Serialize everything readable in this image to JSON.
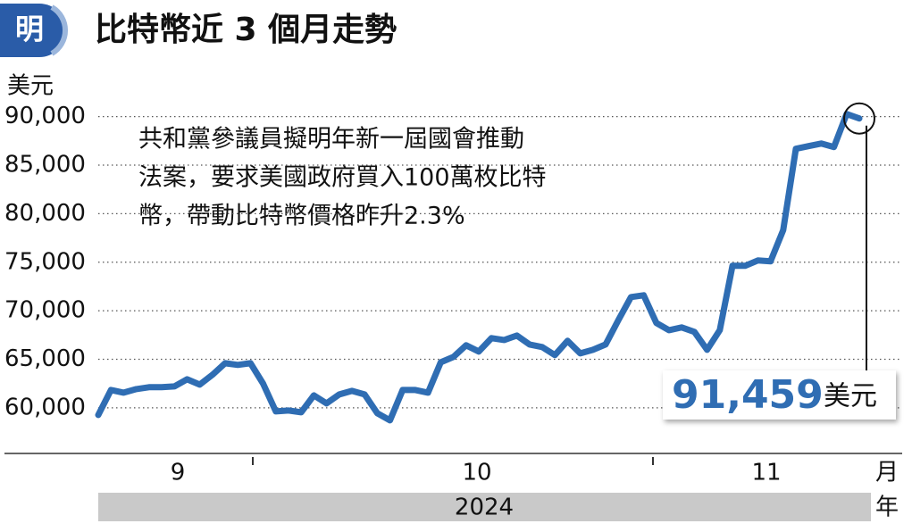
{
  "logo": "明",
  "chart_data": {
    "type": "line",
    "title": "比特幣近 3 個月走勢",
    "y_unit": "美元",
    "annotation": [
      "共和黨參議員擬明年新一屆國會推動",
      "法案，要求美國政府買入100萬枚比特",
      "幣，帶動比特幣價格昨升2.3%"
    ],
    "callout": {
      "text": "91,459",
      "unit": "美元"
    },
    "months": [
      "9",
      "10",
      "11"
    ],
    "month_unit": "月",
    "year": "2024",
    "year_unit": "年",
    "color": "#2f6db3",
    "values": [
      59260,
      61840,
      61560,
      61930,
      62120,
      62120,
      62210,
      62940,
      62390,
      63400,
      64600,
      64420,
      64600,
      62480,
      59630,
      59720,
      59540,
      61290,
      60460,
      61380,
      61750,
      61380,
      59450,
      58710,
      61840,
      61840,
      61560,
      64690,
      65240,
      66440,
      65800,
      67180,
      66990,
      67450,
      66530,
      66260,
      65430,
      66900,
      65610,
      65980,
      66530,
      69020,
      71410,
      71590,
      68740,
      68000,
      68280,
      67820,
      65980,
      68000,
      74630,
      74630,
      75180,
      75090,
      78310,
      86680,
      86960,
      87230,
      86860,
      90270,
      89810
    ],
    "ylim": [
      55300,
      93000
    ],
    "yticks": [
      {
        "value": 60000,
        "label": "60,000"
      },
      {
        "value": 65000,
        "label": "65,000"
      },
      {
        "value": 70000,
        "label": "70,000"
      },
      {
        "value": 75000,
        "label": "75,000"
      },
      {
        "value": 80000,
        "label": "80,000"
      },
      {
        "value": 85000,
        "label": "85,000"
      },
      {
        "value": 90000,
        "label": "90,000"
      }
    ],
    "grid": true
  }
}
